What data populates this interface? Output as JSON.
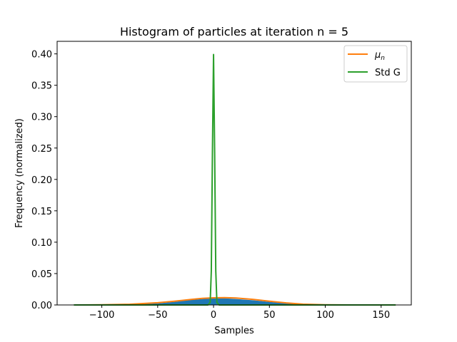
{
  "chart_data": {
    "type": "line",
    "title": "Histogram of particles at iteration n = 5",
    "xlabel": "Samples",
    "ylabel": "Frequency (normalized)",
    "xlim": [
      -140,
      177
    ],
    "ylim": [
      0,
      0.42
    ],
    "xticks": [
      -100,
      -50,
      0,
      50,
      100,
      150
    ],
    "xtick_labels": [
      "−100",
      "−50",
      "0",
      "50",
      "100",
      "150"
    ],
    "yticks": [
      0.0,
      0.05,
      0.1,
      0.15,
      0.2,
      0.25,
      0.3,
      0.35,
      0.4
    ],
    "ytick_labels": [
      "0.00",
      "0.05",
      "0.10",
      "0.15",
      "0.20",
      "0.25",
      "0.30",
      "0.35",
      "0.40"
    ],
    "grid": false,
    "legend_placement": "top-right",
    "histogram": {
      "name": "",
      "color": "#1f77b4",
      "bins": [
        {
          "x": -100,
          "y": 0.0
        },
        {
          "x": -75,
          "y": 0.0005
        },
        {
          "x": -50,
          "y": 0.0025
        },
        {
          "x": -35,
          "y": 0.005
        },
        {
          "x": -20,
          "y": 0.008
        },
        {
          "x": -10,
          "y": 0.0095
        },
        {
          "x": 0,
          "y": 0.0105
        },
        {
          "x": 10,
          "y": 0.0105
        },
        {
          "x": 20,
          "y": 0.0095
        },
        {
          "x": 35,
          "y": 0.0075
        },
        {
          "x": 50,
          "y": 0.005
        },
        {
          "x": 65,
          "y": 0.0025
        },
        {
          "x": 80,
          "y": 0.001
        },
        {
          "x": 100,
          "y": 0.0
        },
        {
          "x": 150,
          "y": 0.0
        }
      ]
    },
    "series": [
      {
        "name": "μ",
        "name_subscript": "n",
        "color": "#ff7f0e",
        "x": [
          -125,
          -100,
          -75,
          -50,
          -35,
          -20,
          -10,
          0,
          10,
          20,
          35,
          50,
          65,
          80,
          100,
          125,
          163
        ],
        "y": [
          0.0,
          0.0003,
          0.0012,
          0.0035,
          0.006,
          0.0088,
          0.0105,
          0.0113,
          0.0116,
          0.011,
          0.009,
          0.006,
          0.0033,
          0.0013,
          0.0003,
          0.0,
          0.0
        ]
      },
      {
        "name": "Std G",
        "color": "#2ca02c",
        "x": [
          -125,
          -50,
          -5,
          -3,
          -2,
          -1,
          0,
          1,
          2,
          3,
          5,
          50,
          163
        ],
        "y": [
          0.0,
          0.0,
          0.0,
          0.004,
          0.054,
          0.242,
          0.399,
          0.242,
          0.054,
          0.004,
          0.0,
          0.0,
          0.0
        ]
      }
    ]
  }
}
